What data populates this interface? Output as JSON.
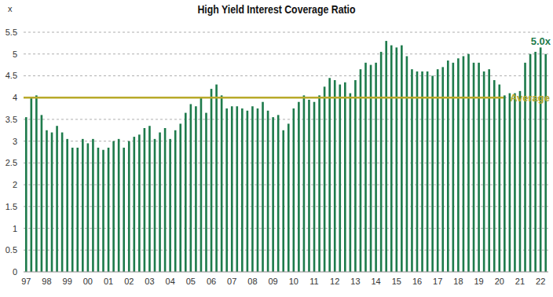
{
  "chart_data": {
    "type": "bar",
    "title": "High Yield Interest Coverage Ratio",
    "y_label": "x",
    "categories": [
      "97",
      null,
      null,
      null,
      "98",
      null,
      null,
      null,
      "99",
      null,
      null,
      null,
      "00",
      null,
      null,
      null,
      "01",
      null,
      null,
      null,
      "02",
      null,
      null,
      null,
      "03",
      null,
      null,
      null,
      "04",
      null,
      null,
      null,
      "05",
      null,
      null,
      null,
      "06",
      null,
      null,
      null,
      "07",
      null,
      null,
      null,
      "08",
      null,
      null,
      null,
      "09",
      null,
      null,
      null,
      "10",
      null,
      null,
      null,
      "11",
      null,
      null,
      null,
      "12",
      null,
      null,
      null,
      "13",
      null,
      null,
      null,
      "14",
      null,
      null,
      null,
      "15",
      null,
      null,
      null,
      "16",
      null,
      null,
      null,
      "17",
      null,
      null,
      null,
      "18",
      null,
      null,
      null,
      "19",
      null,
      null,
      null,
      "20",
      null,
      null,
      null,
      "21",
      null,
      null,
      null,
      "22",
      null
    ],
    "values": [
      3.55,
      4.0,
      4.05,
      3.6,
      3.25,
      3.2,
      3.35,
      3.2,
      3.05,
      2.85,
      2.85,
      3.05,
      2.95,
      3.05,
      2.85,
      2.8,
      2.85,
      3.0,
      3.05,
      2.85,
      3.0,
      3.1,
      3.15,
      3.3,
      3.35,
      3.05,
      3.2,
      3.3,
      3.05,
      3.25,
      3.4,
      3.65,
      3.85,
      3.8,
      4.0,
      3.65,
      4.2,
      4.3,
      4.05,
      3.75,
      3.8,
      3.8,
      3.75,
      3.7,
      3.8,
      3.75,
      3.9,
      3.7,
      3.55,
      3.6,
      3.25,
      3.4,
      3.75,
      3.9,
      4.05,
      3.95,
      3.9,
      4.05,
      4.25,
      4.45,
      4.4,
      4.3,
      4.35,
      4.1,
      4.4,
      4.65,
      4.8,
      4.75,
      4.8,
      5.05,
      5.3,
      5.2,
      5.15,
      5.2,
      4.95,
      4.65,
      4.6,
      4.6,
      4.6,
      4.5,
      4.65,
      4.7,
      4.85,
      4.8,
      4.9,
      4.95,
      5.0,
      4.8,
      4.8,
      4.6,
      4.65,
      4.4,
      4.3,
      4.05,
      4.1,
      4.1,
      4.15,
      4.8,
      5.0,
      5.05,
      5.15,
      5.0
    ],
    "color": "#1e7b4c",
    "ylim": [
      0,
      5.5
    ],
    "yticks": [
      0,
      0.5,
      1,
      1.5,
      2,
      2.5,
      3,
      3.5,
      4,
      4.5,
      5,
      5.5
    ],
    "grid": true,
    "annotations": [
      {
        "text": "5.0x",
        "color": "#1e7b4c"
      },
      {
        "text": "Average",
        "value": 4.0,
        "color": "#b8a92a"
      }
    ]
  }
}
